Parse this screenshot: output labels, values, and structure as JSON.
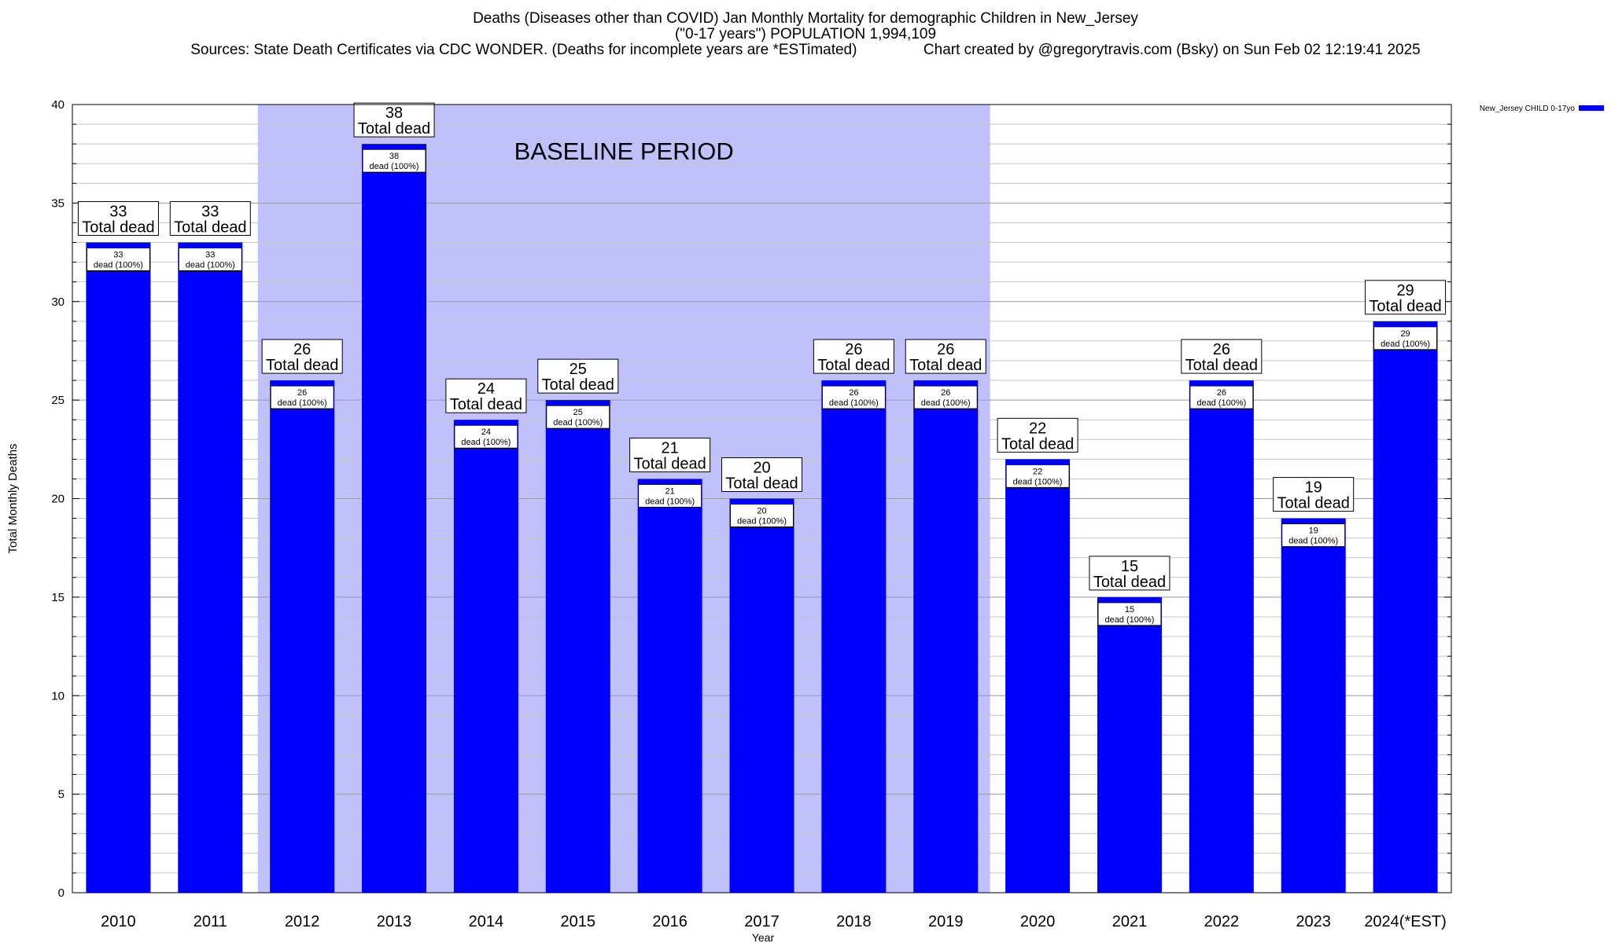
{
  "chart_data": {
    "type": "bar",
    "title_line1": "Deaths (Diseases other than COVID) Jan Monthly Mortality for demographic Children in New_Jersey",
    "title_line2": "(\"0-17 years\") POPULATION 1,994,109",
    "title_line3": "Sources: State Death Certificates via CDC WONDER. (Deaths for incomplete years are *ESTimated)                Chart created by @gregorytravis.com (Bsky) on Sun Feb 02 12:19:41 2025",
    "xlabel": "Year",
    "ylabel": "Total Monthly Deaths",
    "ylim": [
      0,
      40
    ],
    "y_major_ticks": [
      0,
      5,
      10,
      15,
      20,
      25,
      30,
      35,
      40
    ],
    "y_minor_step": 1,
    "grid": true,
    "legend_position": "top-right",
    "legend_entry": "New_Jersey CHILD 0-17yo",
    "bar_color": "#0000ff",
    "baseline_color": "#c0c0fc",
    "baseline_label": "BASELINE PERIOD",
    "baseline_range": [
      "2012",
      "2019"
    ],
    "categories": [
      "2010",
      "2011",
      "2012",
      "2013",
      "2014",
      "2015",
      "2016",
      "2017",
      "2018",
      "2019",
      "2020",
      "2021",
      "2022",
      "2023",
      "2024(*EST)"
    ],
    "values": [
      33,
      33,
      26,
      38,
      24,
      25,
      21,
      20,
      26,
      26,
      22,
      15,
      26,
      19,
      29
    ],
    "total_label_suffix": "Total dead",
    "inner_label_suffix": "dead (100%)"
  }
}
